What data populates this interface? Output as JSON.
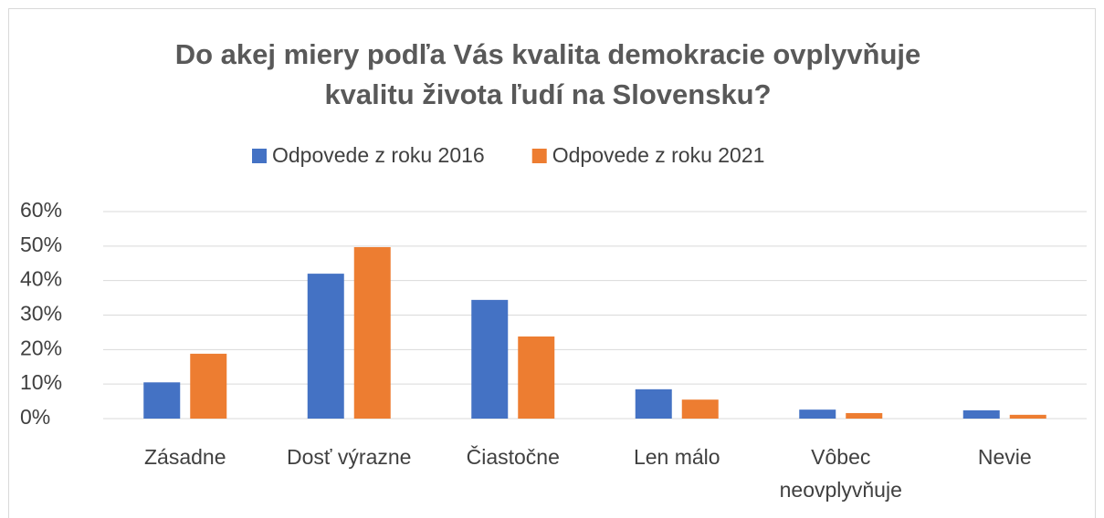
{
  "chart_data": {
    "type": "bar",
    "title": "Do akej miery podľa Vás kvalita demokracie ovplyvňuje kvalitu života ľudí na Slovensku?",
    "categories": [
      "Zásadne",
      "Dosť výrazne",
      "Čiastočne",
      "Len málo",
      "Vôbec neovplyvňuje",
      "Nevie"
    ],
    "series": [
      {
        "name": "Odpovede z roku 2016",
        "color": "#4472c4",
        "values": [
          10.5,
          42,
          34.4,
          8.5,
          2.6,
          2.4
        ]
      },
      {
        "name": "Odpovede z roku 2021",
        "color": "#ed7d31",
        "values": [
          18.8,
          49.7,
          23.8,
          5.5,
          1.6,
          1.1
        ]
      }
    ],
    "ylim": [
      0,
      60
    ],
    "yticks": [
      {
        "value": 0,
        "label": "0%"
      },
      {
        "value": 10,
        "label": "10%"
      },
      {
        "value": 20,
        "label": "20%"
      },
      {
        "value": 30,
        "label": "30%"
      },
      {
        "value": 40,
        "label": "40%"
      },
      {
        "value": 50,
        "label": "50%"
      },
      {
        "value": 60,
        "label": "60%"
      }
    ],
    "grid": true,
    "legend": "top"
  }
}
